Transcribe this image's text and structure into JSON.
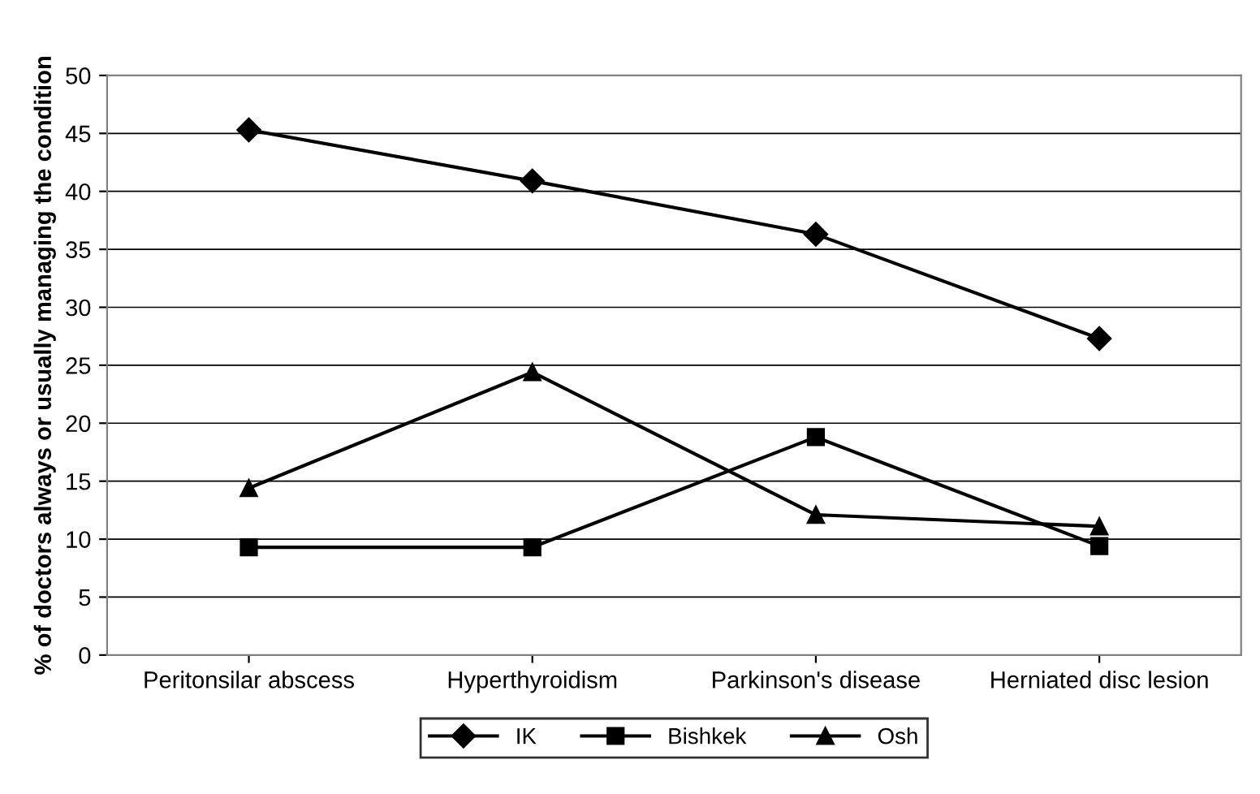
{
  "chart_data": {
    "type": "line",
    "ylabel": "% of doctors always or usually managing the condition",
    "categories": [
      "Peritonsilar abscess",
      "Hyperthyroidism",
      "Parkinson's disease",
      "Herniated disc lesion"
    ],
    "series": [
      {
        "name": "IK",
        "color": "#000000",
        "marker": "diamond",
        "values": [
          45.3,
          40.9,
          36.3,
          27.3
        ]
      },
      {
        "name": "Bishkek",
        "color": "#000000",
        "marker": "square",
        "values": [
          9.3,
          9.3,
          18.8,
          9.4
        ]
      },
      {
        "name": "Osh",
        "color": "#000000",
        "marker": "triangle",
        "values": [
          14.4,
          24.4,
          12.1,
          11.1
        ]
      }
    ],
    "ylim": [
      0,
      50
    ],
    "yticks": [
      0,
      5,
      10,
      15,
      20,
      25,
      30,
      35,
      40,
      45,
      50
    ],
    "grid": "y",
    "legend": "bottom",
    "line_style": "solid"
  }
}
